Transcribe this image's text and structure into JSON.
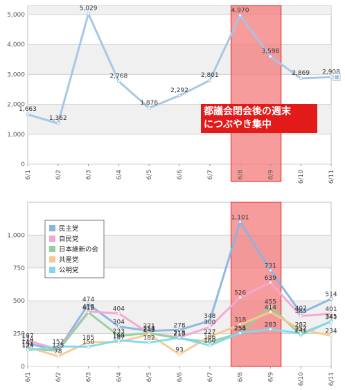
{
  "annotation": {
    "line1": "都議会閉会後の週末",
    "line2": "につぶやき集中"
  },
  "colors": {
    "highlight_fill": "#f47b7b",
    "highlight_stroke": "#e02020",
    "callout_bg": "#e21a1a"
  },
  "chart_data": [
    {
      "type": "line",
      "categories": [
        "6/1",
        "6/2",
        "6/3",
        "6/4",
        "6/5",
        "6/6",
        "6/7",
        "6/8",
        "6/9",
        "6/10",
        "6/11"
      ],
      "series": [
        {
          "values": [
            1663,
            1362,
            5029,
            2768,
            1876,
            2292,
            2801,
            4970,
            3598,
            2869,
            2908
          ],
          "color": "#a3c4e6"
        }
      ],
      "ylim": [
        0,
        5000
      ],
      "yticks": [
        "0",
        "1,000",
        "2,000",
        "3,000",
        "4,000",
        "5,000"
      ],
      "data_labels": [
        "1,663",
        "1,362",
        "5,029",
        "2,768",
        "1,876",
        "2,292",
        "2,801",
        "4,970",
        "3,598",
        "2,869",
        "2,908"
      ],
      "highlight_category": "6/8–6/9",
      "grid": true
    },
    {
      "type": "line",
      "categories": [
        "6/1",
        "6/2",
        "6/3",
        "6/4",
        "6/5",
        "6/6",
        "6/7",
        "6/8",
        "6/9",
        "6/10",
        "6/11"
      ],
      "series": [
        {
          "name": "民主党",
          "values": [
            174,
            125,
            474,
            304,
            271,
            278,
            348,
            1101,
            731,
            407,
            514
          ],
          "color": "#88b4e0",
          "labels": [
            "174",
            "125",
            "474",
            "304",
            "271",
            "278",
            "348",
            "1,101",
            "731",
            "407",
            "514"
          ]
        },
        {
          "name": "自民党",
          "values": [
            197,
            130,
            418,
            404,
            252,
            221,
            300,
            526,
            639,
            385,
            401
          ],
          "color": "#f4a6cf",
          "labels": [
            "197",
            "",
            "418",
            "404",
            "252",
            "",
            "300",
            "526",
            "639",
            "385",
            "401"
          ]
        },
        {
          "name": "日本維新の会",
          "values": [
            131,
            120,
            412,
            233,
            254,
            213,
            186,
            254,
            455,
            241,
            345
          ],
          "color": "#92d09c",
          "labels": [
            "131",
            "",
            "412",
            "233",
            "254",
            "213",
            "186",
            "254",
            "455",
            "241",
            "345"
          ]
        },
        {
          "name": "共産党",
          "values": [
            147,
            78,
            185,
            187,
            243,
            93,
            227,
            318,
            414,
            282,
            234
          ],
          "color": "#f7c890",
          "labels": [
            "147",
            "78",
            "185",
            "187",
            "243",
            "93",
            "227",
            "318",
            "414",
            "282",
            "234"
          ]
        },
        {
          "name": "公明党",
          "values": [
            124,
            152,
            150,
            198,
            182,
            218,
            160,
            255,
            283,
            252,
            341
          ],
          "color": "#7fd8ef",
          "labels": [
            "124",
            "152",
            "150",
            "198",
            "182",
            "218",
            "160",
            "255",
            "283",
            "252",
            "341"
          ]
        }
      ],
      "ylim": [
        0,
        1250
      ],
      "yticks": [
        "0",
        "250",
        "500",
        "750",
        "1,000"
      ],
      "legend": "top-left",
      "grid": true
    }
  ]
}
